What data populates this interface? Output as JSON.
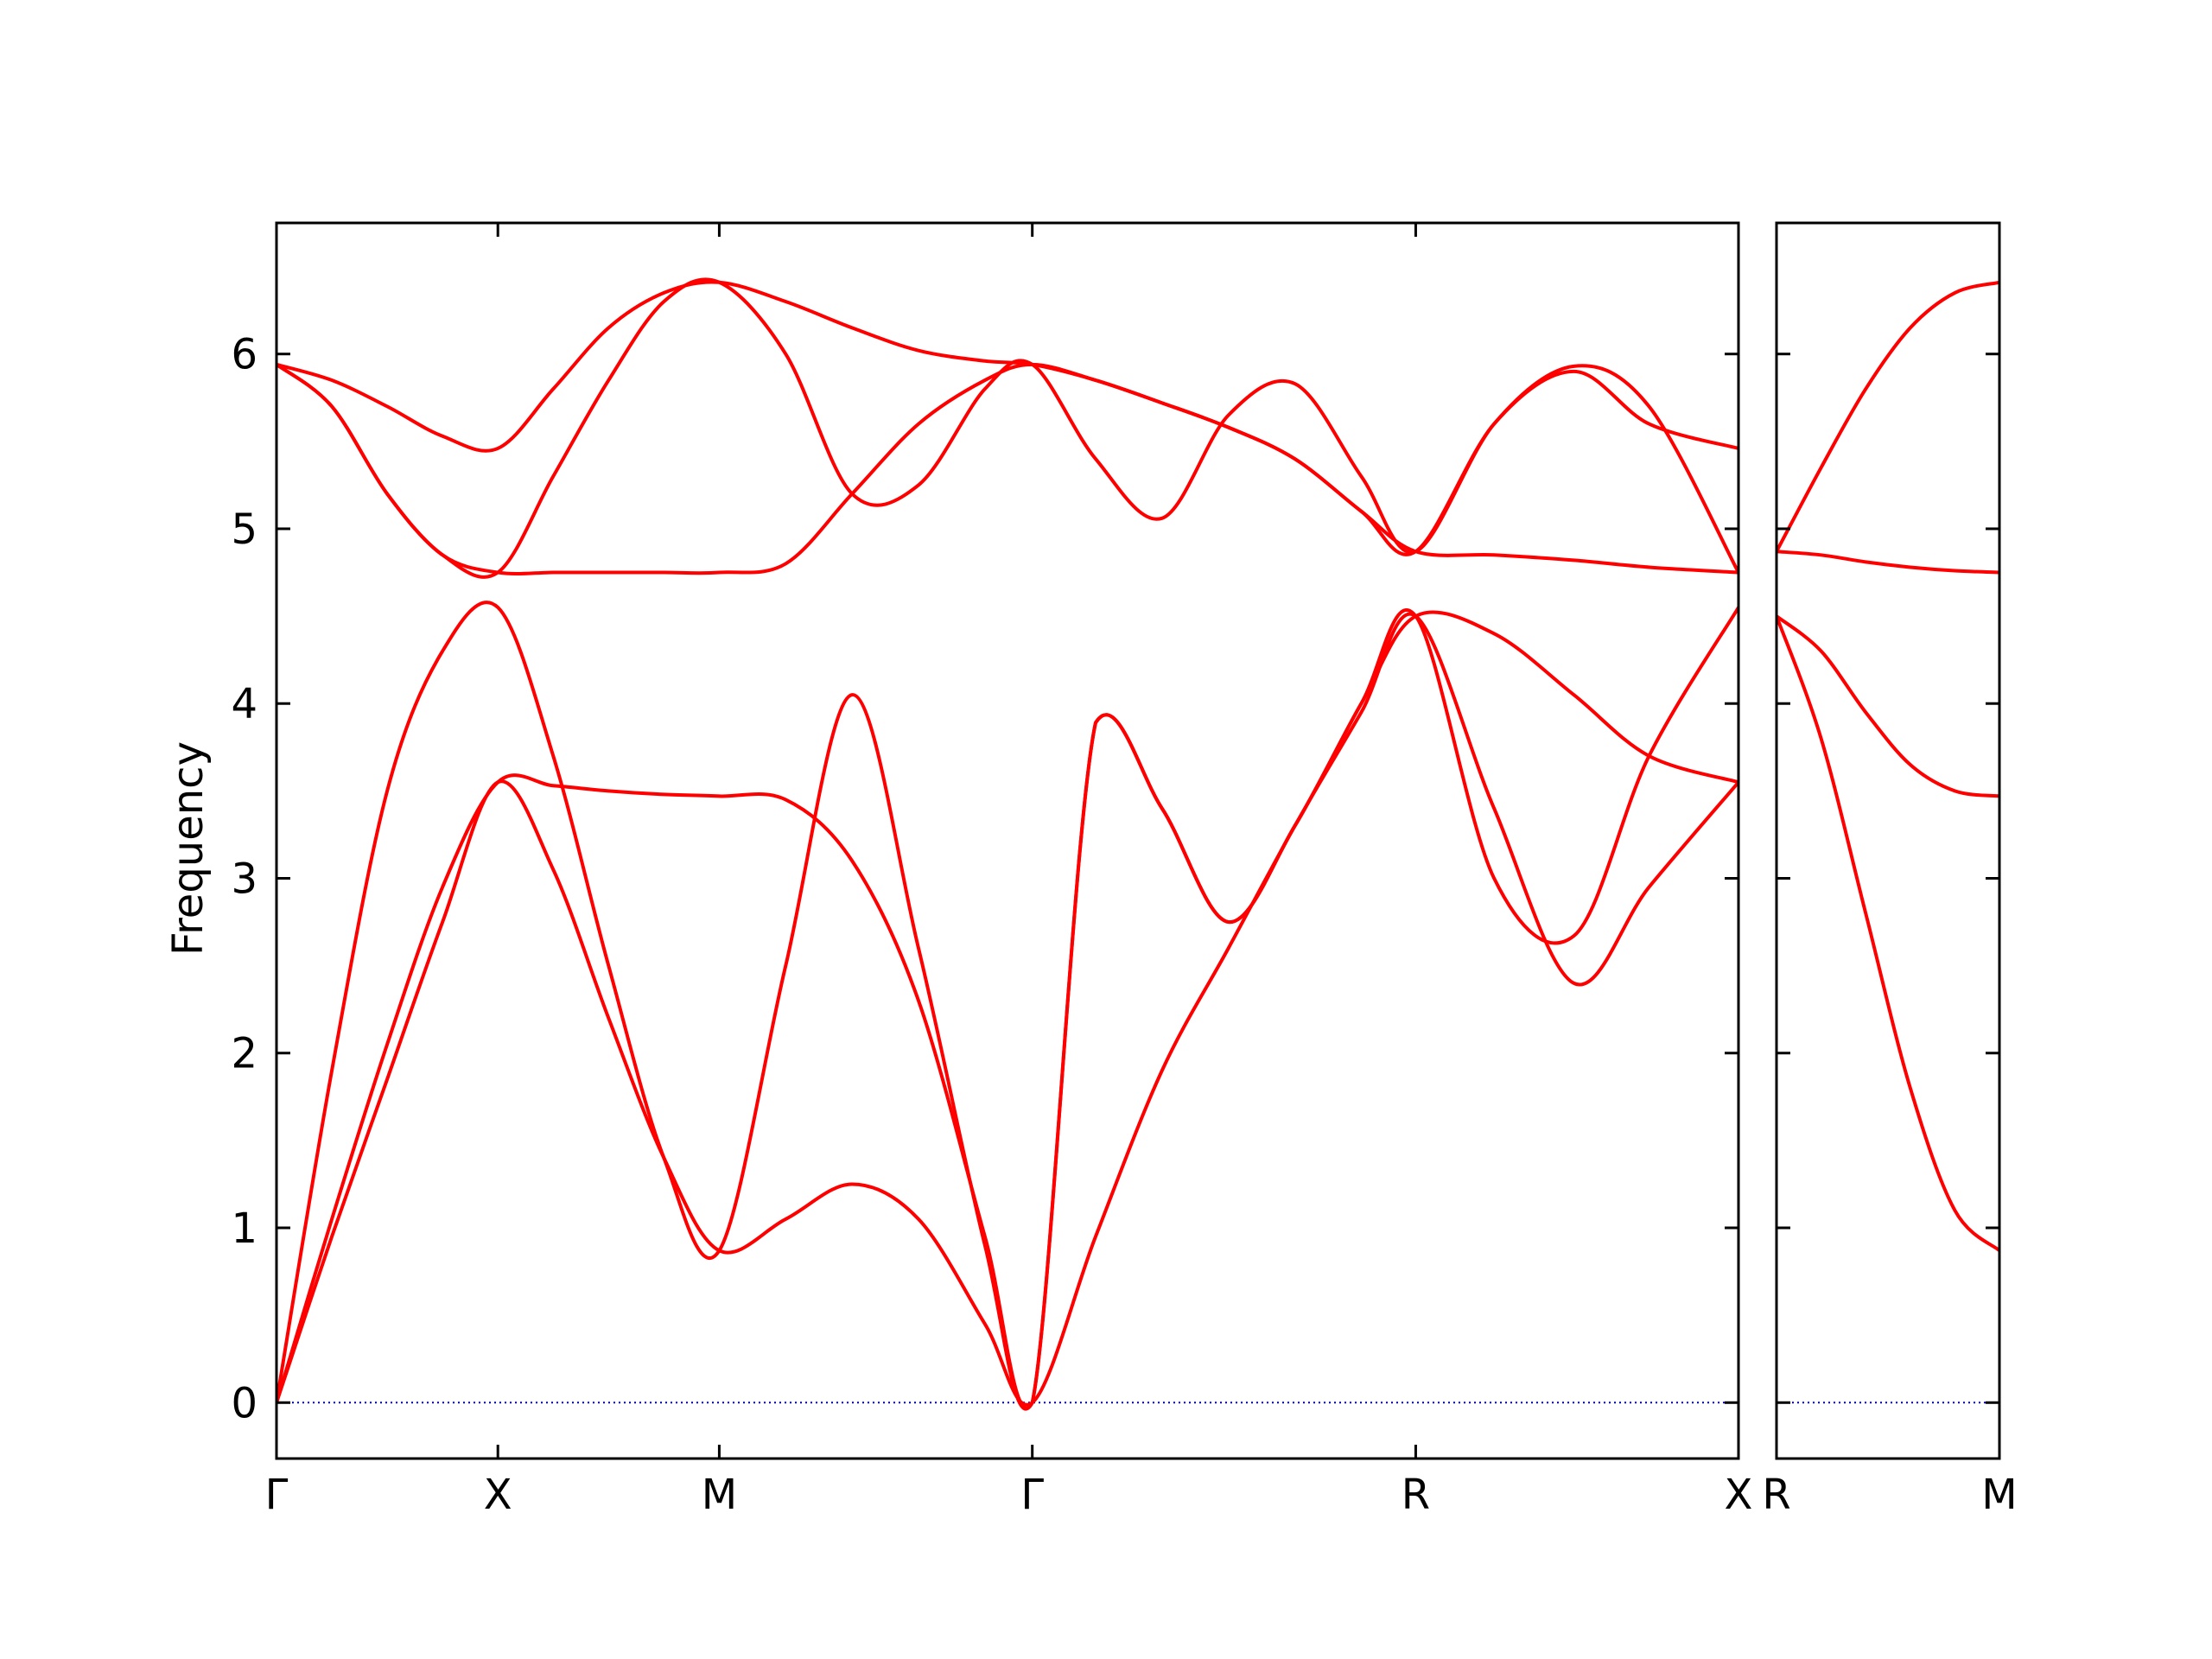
{
  "chart_data": {
    "type": "line",
    "ylabel": "Frequency",
    "ylim": [
      -0.32,
      6.75
    ],
    "yticks": [
      0,
      1,
      2,
      3,
      4,
      5,
      6
    ],
    "band_color": "#ff0000",
    "zero_line_color": "#0000aa",
    "frame_color": "#000000",
    "panels": [
      {
        "x_range": [
          0,
          3.302
        ],
        "kpoints": [
          {
            "label": "Γ",
            "x": 0
          },
          {
            "label": "X",
            "x": 0.5
          },
          {
            "label": "M",
            "x": 1.0
          },
          {
            "label": "Γ",
            "x": 1.707
          },
          {
            "label": "R",
            "x": 2.573
          },
          {
            "label": "X",
            "x": 3.302
          }
        ],
        "bands": [
          {
            "x": [
              0,
              0.125,
              0.25,
              0.375,
              0.5,
              0.625,
              0.75,
              0.875,
              1.0,
              1.15,
              1.3,
              1.45,
              1.6,
              1.707,
              1.85,
              2.0,
              2.15,
              2.3,
              2.45,
              2.573,
              2.75,
              2.93,
              3.1,
              3.302
            ],
            "y": [
              0,
              0.95,
              1.85,
              2.75,
              3.55,
              3.05,
              2.2,
              1.4,
              0.87,
              1.05,
              1.25,
              1.05,
              0.45,
              0,
              0.95,
              1.9,
              2.6,
              3.3,
              3.95,
              4.5,
              3.4,
              2.4,
              2.95,
              3.55
            ]
          },
          {
            "x": [
              0,
              0.125,
              0.25,
              0.375,
              0.5,
              0.625,
              0.75,
              0.875,
              1.0,
              1.15,
              1.3,
              1.45,
              1.6,
              1.707,
              1.85,
              2.0,
              2.15,
              2.3,
              2.45,
              2.573,
              2.75,
              2.93,
              3.1,
              3.302
            ],
            "y": [
              0,
              1.9,
              3.5,
              4.3,
              4.55,
              3.7,
              2.5,
              1.4,
              0.87,
              2.5,
              4.05,
              2.6,
              0.9,
              0,
              3.89,
              3.4,
              2.75,
              3.3,
              4.0,
              4.5,
              3.0,
              2.67,
              3.7,
              4.55
            ]
          },
          {
            "x": [
              0,
              0.125,
              0.25,
              0.375,
              0.5,
              0.625,
              0.75,
              0.875,
              1.0,
              1.15,
              1.3,
              1.45,
              1.6,
              1.707,
              1.85,
              2.0,
              2.15,
              2.3,
              2.45,
              2.573,
              2.75,
              2.93,
              3.1,
              3.302
            ],
            "y": [
              0,
              1.05,
              2.05,
              2.95,
              3.55,
              3.53,
              3.5,
              3.48,
              3.47,
              3.45,
              3.1,
              2.3,
              0.95,
              0,
              3.89,
              3.4,
              2.75,
              3.3,
              4.0,
              4.5,
              4.4,
              4.05,
              3.7,
              3.55
            ]
          },
          {
            "x": [
              0,
              0.125,
              0.25,
              0.375,
              0.5,
              0.625,
              0.75,
              0.875,
              1.0,
              1.15,
              1.3,
              1.45,
              1.6,
              1.707,
              1.85,
              2.0,
              2.15,
              2.3,
              2.45,
              2.573,
              2.75,
              2.93,
              3.1,
              3.302
            ],
            "y": [
              5.94,
              5.7,
              5.2,
              4.85,
              4.75,
              4.75,
              4.75,
              4.75,
              4.75,
              4.8,
              5.2,
              5.6,
              5.85,
              5.94,
              5.85,
              5.72,
              5.58,
              5.4,
              5.1,
              4.87,
              4.85,
              4.82,
              4.78,
              4.75
            ]
          },
          {
            "x": [
              0,
              0.125,
              0.25,
              0.375,
              0.5,
              0.625,
              0.75,
              0.875,
              1.0,
              1.15,
              1.3,
              1.45,
              1.6,
              1.707,
              1.85,
              2.0,
              2.15,
              2.3,
              2.45,
              2.573,
              2.75,
              2.93,
              3.1,
              3.302
            ],
            "y": [
              5.94,
              5.85,
              5.7,
              5.53,
              5.46,
              5.8,
              6.15,
              6.35,
              6.41,
              6.3,
              6.15,
              6.02,
              5.96,
              5.94,
              5.85,
              5.72,
              5.58,
              5.4,
              5.1,
              4.87,
              5.6,
              5.9,
              5.6,
              5.46
            ]
          },
          {
            "x": [
              0,
              0.125,
              0.25,
              0.375,
              0.5,
              0.625,
              0.75,
              0.875,
              1.0,
              1.15,
              1.3,
              1.45,
              1.6,
              1.707,
              1.85,
              2.0,
              2.15,
              2.3,
              2.45,
              2.573,
              2.75,
              2.93,
              3.1,
              3.302
            ],
            "y": [
              5.94,
              5.7,
              5.2,
              4.85,
              4.75,
              5.3,
              5.85,
              6.3,
              6.41,
              6.0,
              5.2,
              5.25,
              5.8,
              5.94,
              5.4,
              5.06,
              5.65,
              5.83,
              5.3,
              4.87,
              5.6,
              5.93,
              5.7,
              4.75
            ]
          }
        ]
      },
      {
        "x_range": [
          0,
          0.5
        ],
        "kpoints": [
          {
            "label": "R",
            "x": 0
          },
          {
            "label": "M",
            "x": 0.5
          }
        ],
        "bands": [
          {
            "x": [
              0,
              0.1,
              0.2,
              0.3,
              0.4,
              0.5
            ],
            "y": [
              4.5,
              3.8,
              2.8,
              1.8,
              1.1,
              0.87
            ]
          },
          {
            "x": [
              0,
              0.1,
              0.2,
              0.3,
              0.4,
              0.5
            ],
            "y": [
              4.5,
              4.3,
              3.95,
              3.65,
              3.5,
              3.47
            ]
          },
          {
            "x": [
              0,
              0.1,
              0.2,
              0.3,
              0.4,
              0.5
            ],
            "y": [
              4.87,
              4.85,
              4.81,
              4.78,
              4.76,
              4.75
            ]
          },
          {
            "x": [
              0,
              0.1,
              0.2,
              0.3,
              0.4,
              0.5
            ],
            "y": [
              4.87,
              5.35,
              5.8,
              6.15,
              6.35,
              6.41
            ]
          }
        ]
      }
    ]
  }
}
